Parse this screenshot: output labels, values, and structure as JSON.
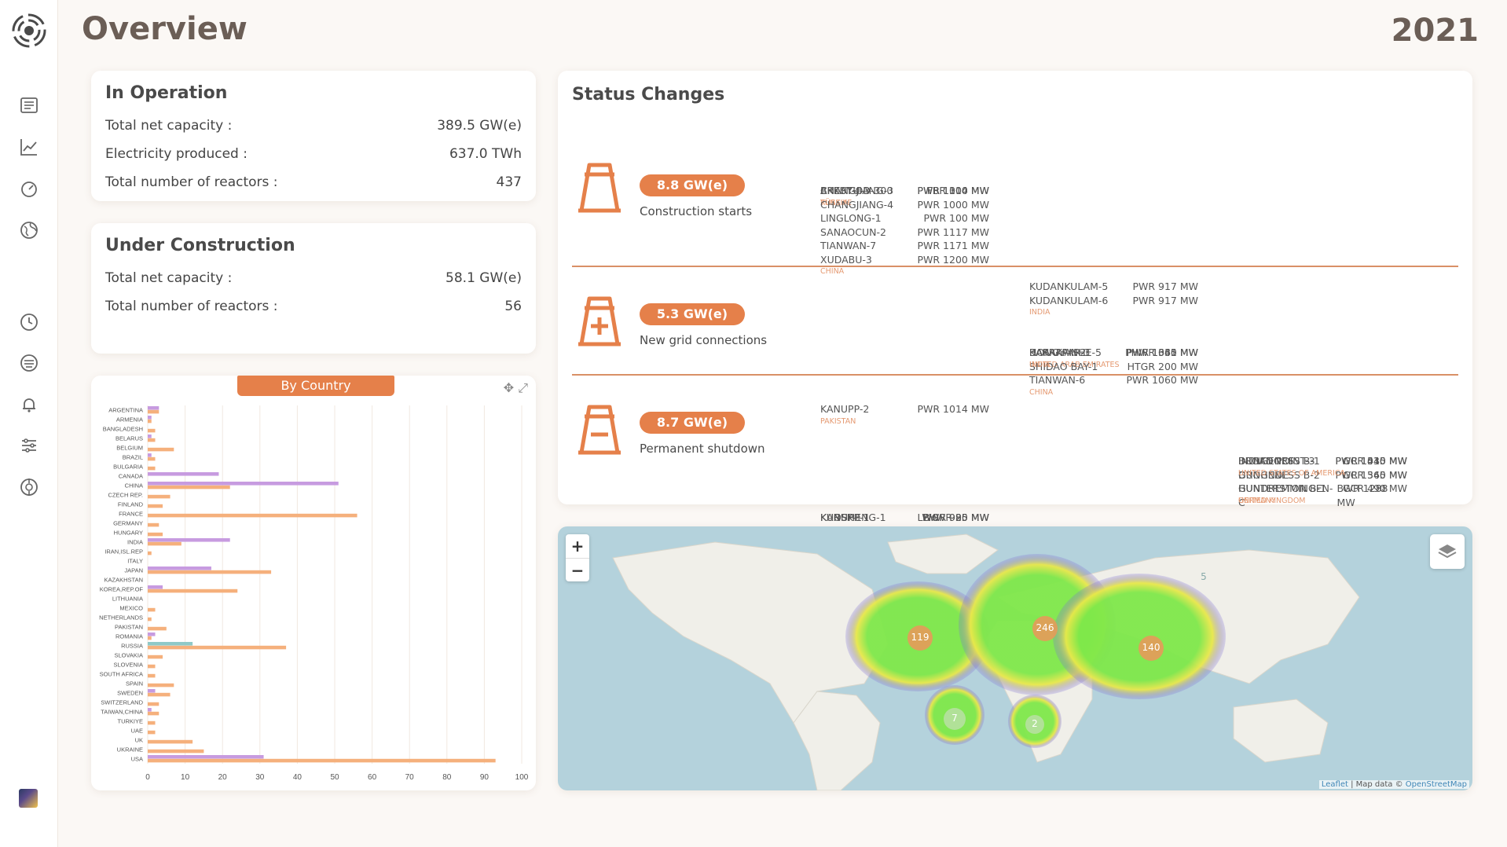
{
  "header": {
    "title": "Overview",
    "year": "2021"
  },
  "sidebar": {
    "icons": [
      "logo-icon",
      "news-icon",
      "trend-chart-icon",
      "gauge-icon",
      "globe-icon",
      "history-icon",
      "stack-icon",
      "bell-icon",
      "filter-sliders-icon",
      "target-icon"
    ]
  },
  "in_operation": {
    "title": "In Operation",
    "rows": [
      {
        "label": "Total net capacity :",
        "value": "389.5 GW(e)"
      },
      {
        "label": "Electricity produced :",
        "value": "637.0 TWh"
      },
      {
        "label": "Total number of reactors :",
        "value": "437"
      }
    ]
  },
  "under_construction": {
    "title": "Under Construction",
    "rows": [
      {
        "label": "Total net capacity :",
        "value": "58.1 GW(e)"
      },
      {
        "label": "Total number of reactors :",
        "value": "56"
      }
    ]
  },
  "status_changes": {
    "title": "Status Changes",
    "sections": [
      {
        "pill": "8.8 GW(e)",
        "label": "Construction starts",
        "groups": [
          {
            "country": "TÜRKIYE",
            "reactors": [
              [
                "AKKUYU-3",
                "PWR 1114 MW"
              ]
            ]
          },
          {
            "country": "RUSSIA",
            "reactors": [
              [
                "BREST-OD-300",
                "FBR 300 MW"
              ]
            ]
          },
          {
            "country": "CHINA",
            "reactors": [
              [
                "CHANGJIANG-3",
                "PWR 1000 MW"
              ],
              [
                "CHANGJIANG-4",
                "PWR 1000 MW"
              ],
              [
                "LINGLONG-1",
                "PWR 100 MW"
              ],
              [
                "SANAOCUN-2",
                "PWR 1117 MW"
              ],
              [
                "TIANWAN-7",
                "PWR 1171 MW"
              ],
              [
                "XUDABU-3",
                "PWR 1200 MW"
              ]
            ]
          },
          {
            "country": "INDIA",
            "reactors": [
              [
                "KUDANKULAM-5",
                "PWR 917 MW"
              ],
              [
                "KUDANKULAM-6",
                "PWR 917 MW"
              ]
            ]
          }
        ]
      },
      {
        "pill": "5.3 GW(e)",
        "label": "New grid connections",
        "groups": [
          {
            "country": "UNITED ARAB EMIRATES",
            "reactors": [
              [
                "BARAKAH-2",
                "PWR 1345 MW"
              ]
            ]
          },
          {
            "country": "CHINA",
            "reactors": [
              [
                "HONGYANHE-5",
                "PWR 1061 MW"
              ],
              [
                "SHIDAO BAY-1",
                "HTGR 200 MW"
              ],
              [
                "TIANWAN-6",
                "PWR 1060 MW"
              ]
            ]
          },
          {
            "country": "INDIA",
            "reactors": [
              [
                "KAKRAPAR-3",
                "PHWR 630 MW"
              ]
            ]
          },
          {
            "country": "PAKISTAN",
            "reactors": [
              [
                "KANUPP-2",
                "PWR 1014 MW"
              ]
            ]
          }
        ]
      },
      {
        "pill": "8.7 GW(e)",
        "label": "Permanent shutdown",
        "groups": [
          {
            "country": "GERMANY",
            "reactors": [
              [
                "BROKDORF",
                "PWR 1410 MW"
              ],
              [
                "GROHNDE",
                "PWR 1360 MW"
              ],
              [
                "GUNDREMMINGEN-C",
                "BWR 1288 MW"
              ]
            ]
          },
          {
            "country": "UNITED KINGDOM",
            "reactors": [
              [
                "DUNGENESS B-1",
                "GCR 545 MW"
              ],
              [
                "DUNGENESS B-2",
                "GCR 545 MW"
              ],
              [
                "HUNTERSTON B-1",
                "GCR 490 MW"
              ]
            ]
          },
          {
            "country": "UNITED STATES OF AMERICA",
            "reactors": [
              [
                "INDIAN POINT-3",
                "PWR 1030 MW"
              ]
            ]
          },
          {
            "country": "PAKISTAN",
            "reactors": [
              [
                "KANUPP-1",
                "PHWR 90 MW"
              ]
            ]
          },
          {
            "country": "TAIWAN, CHINA",
            "reactors": [
              [
                "KUOSHENG-1",
                "BWR 985 MW"
              ]
            ]
          },
          {
            "country": "RUSSIA",
            "reactors": [
              [
                "KURSK-1",
                "LWGR 925 MW"
              ]
            ]
          }
        ]
      }
    ]
  },
  "chart_tab": "By Country",
  "chart_data": {
    "type": "bar",
    "orientation": "horizontal",
    "title": "By Country",
    "xlim": [
      0,
      100
    ],
    "xticks": [
      0,
      10,
      20,
      30,
      40,
      50,
      60,
      70,
      80,
      90,
      100
    ],
    "categories": [
      "ARGENTINA",
      "ARMENIA",
      "BANGLADESH",
      "BELARUS",
      "BELGIUM",
      "BRAZIL",
      "BULGARIA",
      "CANADA",
      "CHINA",
      "CZECH REP.",
      "FINLAND",
      "FRANCE",
      "GERMANY",
      "HUNGARY",
      "INDIA",
      "IRAN,ISL.REP",
      "ITALY",
      "JAPAN",
      "KAZAKHSTAN",
      "KOREA,REP.OF",
      "LITHUANIA",
      "MEXICO",
      "NETHERLANDS",
      "PAKISTAN",
      "ROMANIA",
      "RUSSIA",
      "SLOVAKIA",
      "SLOVENIA",
      "SOUTH AFRICA",
      "SPAIN",
      "SWEDEN",
      "SWITZERLAND",
      "TAIWAN,CHINA",
      "TURKIYE",
      "UAE",
      "UK",
      "UKRAINE",
      "USA"
    ],
    "series": [
      {
        "values": [
          3,
          1,
          0,
          1,
          0,
          1,
          0,
          19,
          51,
          0,
          0,
          0,
          0,
          0,
          22,
          0,
          0,
          17,
          0,
          4,
          0,
          0,
          0,
          0,
          2,
          12,
          0,
          0,
          0,
          0,
          2,
          0,
          1,
          0,
          0,
          0,
          0,
          31
        ]
      },
      {
        "values": [
          3,
          1,
          2,
          2,
          7,
          2,
          2,
          0,
          22,
          6,
          4,
          56,
          3,
          4,
          9,
          1,
          0,
          33,
          0,
          24,
          0,
          2,
          1,
          5,
          1,
          37,
          4,
          2,
          2,
          7,
          6,
          3,
          3,
          2,
          2,
          12,
          15,
          93
        ]
      }
    ],
    "colors": {
      "primary": "#f5b07c",
      "secondary": "#c79be0",
      "teal": "#8fc9c8",
      "yellow": "#f5d36c"
    }
  },
  "map": {
    "zoom_in": "+",
    "zoom_out": "−",
    "clusters": [
      "119",
      "246",
      "140",
      "7",
      "2",
      "5"
    ],
    "attribution_leaflet": "Leaflet",
    "attribution_sep": " | Map data © ",
    "attribution_osm": "OpenStreetMap"
  },
  "colors": {
    "accent": "#e5804a",
    "title": "#6b5e56",
    "country": "#e59a72"
  }
}
